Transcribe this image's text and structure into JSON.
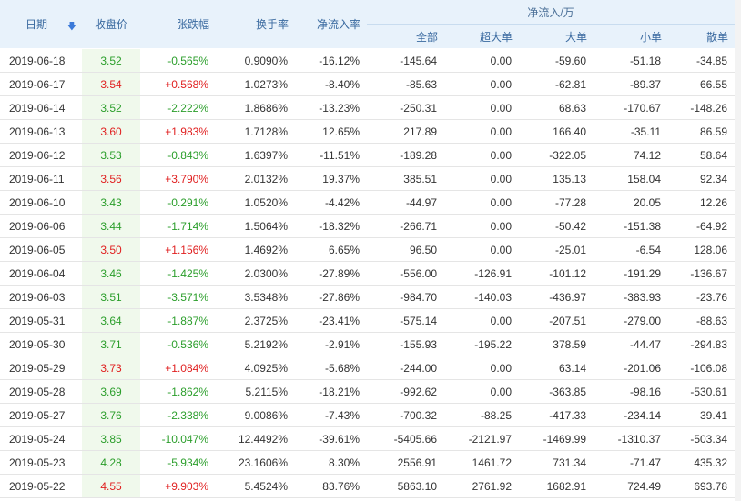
{
  "headers": {
    "date": "日期",
    "close": "收盘价",
    "change": "张跌幅",
    "turnover": "换手率",
    "net_rate": "净流入率",
    "group": "净流入/万",
    "all": "全部",
    "xl": "超大单",
    "large": "大单",
    "small": "小单",
    "retail": "散单"
  },
  "sort_icon": "arrow-down-icon",
  "colors": {
    "up": "#e02020",
    "down": "#2b9e2b",
    "header_bg": "#e8f2fb",
    "close_bg": "#f0f9ec"
  },
  "rows": [
    {
      "date": "2019-06-18",
      "close": "3.52",
      "chg": "-0.565%",
      "turn": "0.9090%",
      "rate": "-16.12%",
      "all": "-145.64",
      "xl": "0.00",
      "l": "-59.60",
      "s": "-51.18",
      "r": "-34.85",
      "dir": "down"
    },
    {
      "date": "2019-06-17",
      "close": "3.54",
      "chg": "+0.568%",
      "turn": "1.0273%",
      "rate": "-8.40%",
      "all": "-85.63",
      "xl": "0.00",
      "l": "-62.81",
      "s": "-89.37",
      "r": "66.55",
      "dir": "up"
    },
    {
      "date": "2019-06-14",
      "close": "3.52",
      "chg": "-2.222%",
      "turn": "1.8686%",
      "rate": "-13.23%",
      "all": "-250.31",
      "xl": "0.00",
      "l": "68.63",
      "s": "-170.67",
      "r": "-148.26",
      "dir": "down"
    },
    {
      "date": "2019-06-13",
      "close": "3.60",
      "chg": "+1.983%",
      "turn": "1.7128%",
      "rate": "12.65%",
      "all": "217.89",
      "xl": "0.00",
      "l": "166.40",
      "s": "-35.11",
      "r": "86.59",
      "dir": "up"
    },
    {
      "date": "2019-06-12",
      "close": "3.53",
      "chg": "-0.843%",
      "turn": "1.6397%",
      "rate": "-11.51%",
      "all": "-189.28",
      "xl": "0.00",
      "l": "-322.05",
      "s": "74.12",
      "r": "58.64",
      "dir": "down"
    },
    {
      "date": "2019-06-11",
      "close": "3.56",
      "chg": "+3.790%",
      "turn": "2.0132%",
      "rate": "19.37%",
      "all": "385.51",
      "xl": "0.00",
      "l": "135.13",
      "s": "158.04",
      "r": "92.34",
      "dir": "up"
    },
    {
      "date": "2019-06-10",
      "close": "3.43",
      "chg": "-0.291%",
      "turn": "1.0520%",
      "rate": "-4.42%",
      "all": "-44.97",
      "xl": "0.00",
      "l": "-77.28",
      "s": "20.05",
      "r": "12.26",
      "dir": "down"
    },
    {
      "date": "2019-06-06",
      "close": "3.44",
      "chg": "-1.714%",
      "turn": "1.5064%",
      "rate": "-18.32%",
      "all": "-266.71",
      "xl": "0.00",
      "l": "-50.42",
      "s": "-151.38",
      "r": "-64.92",
      "dir": "down"
    },
    {
      "date": "2019-06-05",
      "close": "3.50",
      "chg": "+1.156%",
      "turn": "1.4692%",
      "rate": "6.65%",
      "all": "96.50",
      "xl": "0.00",
      "l": "-25.01",
      "s": "-6.54",
      "r": "128.06",
      "dir": "up"
    },
    {
      "date": "2019-06-04",
      "close": "3.46",
      "chg": "-1.425%",
      "turn": "2.0300%",
      "rate": "-27.89%",
      "all": "-556.00",
      "xl": "-126.91",
      "l": "-101.12",
      "s": "-191.29",
      "r": "-136.67",
      "dir": "down"
    },
    {
      "date": "2019-06-03",
      "close": "3.51",
      "chg": "-3.571%",
      "turn": "3.5348%",
      "rate": "-27.86%",
      "all": "-984.70",
      "xl": "-140.03",
      "l": "-436.97",
      "s": "-383.93",
      "r": "-23.76",
      "dir": "down"
    },
    {
      "date": "2019-05-31",
      "close": "3.64",
      "chg": "-1.887%",
      "turn": "2.3725%",
      "rate": "-23.41%",
      "all": "-575.14",
      "xl": "0.00",
      "l": "-207.51",
      "s": "-279.00",
      "r": "-88.63",
      "dir": "down"
    },
    {
      "date": "2019-05-30",
      "close": "3.71",
      "chg": "-0.536%",
      "turn": "5.2192%",
      "rate": "-2.91%",
      "all": "-155.93",
      "xl": "-195.22",
      "l": "378.59",
      "s": "-44.47",
      "r": "-294.83",
      "dir": "down"
    },
    {
      "date": "2019-05-29",
      "close": "3.73",
      "chg": "+1.084%",
      "turn": "4.0925%",
      "rate": "-5.68%",
      "all": "-244.00",
      "xl": "0.00",
      "l": "63.14",
      "s": "-201.06",
      "r": "-106.08",
      "dir": "up"
    },
    {
      "date": "2019-05-28",
      "close": "3.69",
      "chg": "-1.862%",
      "turn": "5.2115%",
      "rate": "-18.21%",
      "all": "-992.62",
      "xl": "0.00",
      "l": "-363.85",
      "s": "-98.16",
      "r": "-530.61",
      "dir": "down"
    },
    {
      "date": "2019-05-27",
      "close": "3.76",
      "chg": "-2.338%",
      "turn": "9.0086%",
      "rate": "-7.43%",
      "all": "-700.32",
      "xl": "-88.25",
      "l": "-417.33",
      "s": "-234.14",
      "r": "39.41",
      "dir": "down"
    },
    {
      "date": "2019-05-24",
      "close": "3.85",
      "chg": "-10.047%",
      "turn": "12.4492%",
      "rate": "-39.61%",
      "all": "-5405.66",
      "xl": "-2121.97",
      "l": "-1469.99",
      "s": "-1310.37",
      "r": "-503.34",
      "dir": "down"
    },
    {
      "date": "2019-05-23",
      "close": "4.28",
      "chg": "-5.934%",
      "turn": "23.1606%",
      "rate": "8.30%",
      "all": "2556.91",
      "xl": "1461.72",
      "l": "731.34",
      "s": "-71.47",
      "r": "435.32",
      "dir": "down"
    },
    {
      "date": "2019-05-22",
      "close": "4.55",
      "chg": "+9.903%",
      "turn": "5.4524%",
      "rate": "83.76%",
      "all": "5863.10",
      "xl": "2761.92",
      "l": "1682.91",
      "s": "724.49",
      "r": "693.78",
      "dir": "up"
    }
  ]
}
